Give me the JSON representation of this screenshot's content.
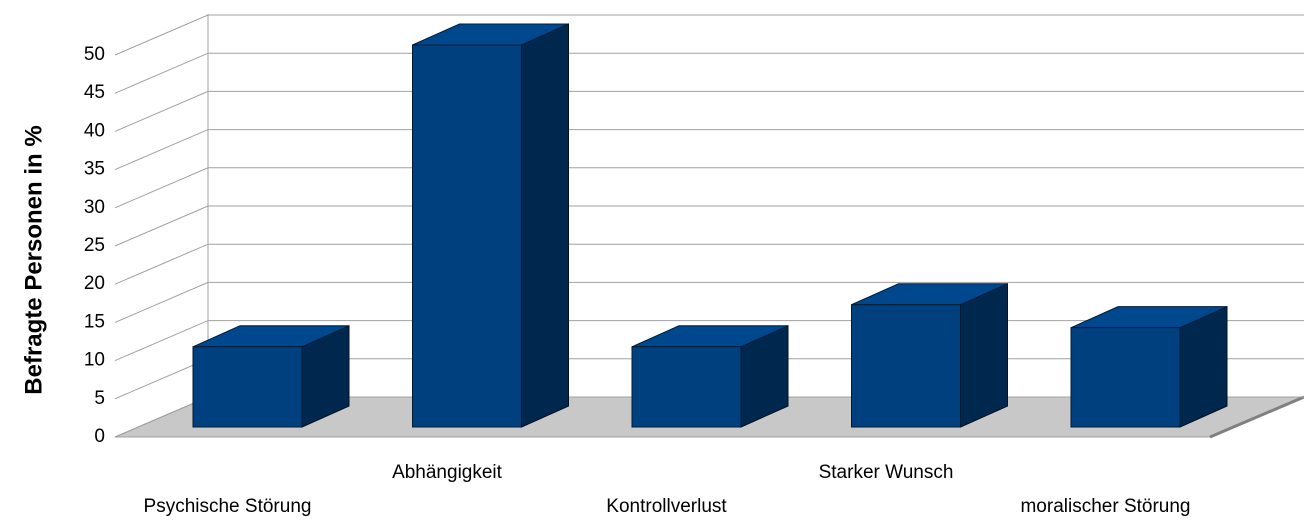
{
  "chart_data": {
    "type": "bar3d",
    "y_axis_label": "Befragte Personen in %",
    "categories": [
      "Psychische Störung",
      "Abhängigkeit",
      "Kontrollverlust",
      "Starker Wunsch",
      "moralischer Störung"
    ],
    "values": [
      10.5,
      50,
      10.5,
      16,
      13
    ],
    "color": "#00407f",
    "ylim": [
      0,
      50
    ],
    "yticks": [
      0,
      5,
      10,
      15,
      20,
      25,
      30,
      35,
      40,
      45,
      50
    ],
    "grid": true
  }
}
